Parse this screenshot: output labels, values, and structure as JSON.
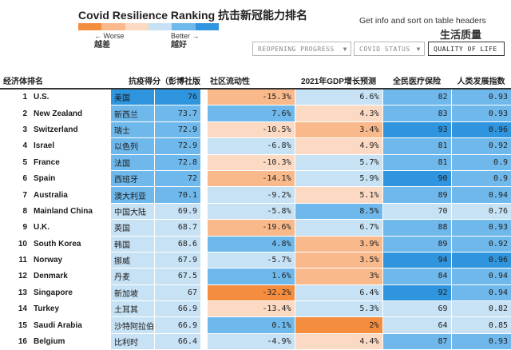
{
  "header": {
    "title": "Covid Resilience Ranking 抗击新冠能力排名",
    "legend": {
      "worse_label": "← Worse",
      "worse_cn": "越差",
      "better_label": "Better →",
      "better_cn": "越好",
      "colors": [
        "#f58d3f",
        "#f9b98b",
        "#fbd9c3",
        "#c6e2f4",
        "#6fb8ec",
        "#2f95de"
      ]
    },
    "info_text": "Get info and sort on table headers",
    "info_cn": "生活质量",
    "tabs": [
      {
        "label": "REOPENING PROGRESS",
        "caret": "▼"
      },
      {
        "label": "COVID STATUS",
        "caret": "▼"
      },
      {
        "label": "QUALITY OF LIFE",
        "caret": ""
      }
    ]
  },
  "chart_data": {
    "type": "table",
    "title": "Covid Resilience Ranking 抗击新冠能力排名",
    "columns": [
      "经济体排名",
      "抗疫得分（彭博社版）",
      "社区流动性",
      "2021年GDP增长预测",
      "全民医疗保险",
      "人类发展指数"
    ],
    "rows": [
      {
        "rank": "1",
        "country": "U.S.",
        "cn": "美国",
        "score": "76",
        "mobility": "-15.3%",
        "gdp": "6.6%",
        "health": "82",
        "hdi": "0.93"
      },
      {
        "rank": "2",
        "country": "New Zealand",
        "cn": "新西兰",
        "score": "73.7",
        "mobility": "7.6%",
        "gdp": "4.3%",
        "health": "83",
        "hdi": "0.93"
      },
      {
        "rank": "3",
        "country": "Switzerland",
        "cn": "瑞士",
        "score": "72.9",
        "mobility": "-10.5%",
        "gdp": "3.4%",
        "health": "93",
        "hdi": "0.96"
      },
      {
        "rank": "4",
        "country": "Israel",
        "cn": "以色列",
        "score": "72.9",
        "mobility": "-6.8%",
        "gdp": "4.9%",
        "health": "81",
        "hdi": "0.92"
      },
      {
        "rank": "5",
        "country": "France",
        "cn": "法国",
        "score": "72.8",
        "mobility": "-10.3%",
        "gdp": "5.7%",
        "health": "81",
        "hdi": "0.9"
      },
      {
        "rank": "6",
        "country": "Spain",
        "cn": "西班牙",
        "score": "72",
        "mobility": "-14.1%",
        "gdp": "5.9%",
        "health": "90",
        "hdi": "0.9"
      },
      {
        "rank": "7",
        "country": "Australia",
        "cn": "澳大利亚",
        "score": "70.1",
        "mobility": "-9.2%",
        "gdp": "5.1%",
        "health": "89",
        "hdi": "0.94"
      },
      {
        "rank": "8",
        "country": "Mainland China",
        "cn": "中国大陆",
        "score": "69.9",
        "mobility": "-5.8%",
        "gdp": "8.5%",
        "health": "70",
        "hdi": "0.76"
      },
      {
        "rank": "9",
        "country": "U.K.",
        "cn": "英国",
        "score": "68.7",
        "mobility": "-19.6%",
        "gdp": "6.7%",
        "health": "88",
        "hdi": "0.93"
      },
      {
        "rank": "10",
        "country": "South Korea",
        "cn": "韩国",
        "score": "68.6",
        "mobility": "4.8%",
        "gdp": "3.9%",
        "health": "89",
        "hdi": "0.92"
      },
      {
        "rank": "11",
        "country": "Norway",
        "cn": "挪威",
        "score": "67.9",
        "mobility": "-5.7%",
        "gdp": "3.5%",
        "health": "94",
        "hdi": "0.96"
      },
      {
        "rank": "12",
        "country": "Denmark",
        "cn": "丹麦",
        "score": "67.5",
        "mobility": "1.6%",
        "gdp": "3%",
        "health": "84",
        "hdi": "0.94"
      },
      {
        "rank": "13",
        "country": "Singapore",
        "cn": "新加坡",
        "score": "67",
        "mobility": "-32.2%",
        "gdp": "6.4%",
        "health": "92",
        "hdi": "0.94"
      },
      {
        "rank": "14",
        "country": "Turkey",
        "cn": "土耳其",
        "score": "66.9",
        "mobility": "-13.4%",
        "gdp": "5.3%",
        "health": "69",
        "hdi": "0.82"
      },
      {
        "rank": "15",
        "country": "Saudi Arabia",
        "cn": "沙特阿拉伯",
        "score": "66.9",
        "mobility": "0.1%",
        "gdp": "2%",
        "health": "64",
        "hdi": "0.85"
      },
      {
        "rank": "16",
        "country": "Belgium",
        "cn": "比利时",
        "score": "66.4",
        "mobility": "-4.9%",
        "gdp": "4.4%",
        "health": "87",
        "hdi": "0.93"
      }
    ],
    "cell_colors": {
      "score": [
        "#2f95de",
        "#6fb8ec",
        "#6fb8ec",
        "#6fb8ec",
        "#6fb8ec",
        "#6fb8ec",
        "#6fb8ec",
        "#c6e2f4",
        "#c6e2f4",
        "#c6e2f4",
        "#c6e2f4",
        "#c6e2f4",
        "#c6e2f4",
        "#c6e2f4",
        "#c6e2f4",
        "#c6e2f4"
      ],
      "mobility": [
        "#f9b98b",
        "#6fb8ec",
        "#fbd9c3",
        "#c6e2f4",
        "#fbd9c3",
        "#f9b98b",
        "#c6e2f4",
        "#c6e2f4",
        "#f9b98b",
        "#6fb8ec",
        "#c6e2f4",
        "#6fb8ec",
        "#f58d3f",
        "#fbd9c3",
        "#6fb8ec",
        "#c6e2f4"
      ],
      "gdp": [
        "#c6e2f4",
        "#fbd9c3",
        "#f9b98b",
        "#fbd9c3",
        "#c6e2f4",
        "#c6e2f4",
        "#fbd9c3",
        "#6fb8ec",
        "#c6e2f4",
        "#f9b98b",
        "#f9b98b",
        "#f9b98b",
        "#c6e2f4",
        "#c6e2f4",
        "#f58d3f",
        "#fbd9c3"
      ],
      "health": [
        "#6fb8ec",
        "#6fb8ec",
        "#2f95de",
        "#6fb8ec",
        "#6fb8ec",
        "#2f95de",
        "#6fb8ec",
        "#c6e2f4",
        "#6fb8ec",
        "#6fb8ec",
        "#2f95de",
        "#6fb8ec",
        "#2f95de",
        "#c6e2f4",
        "#c6e2f4",
        "#6fb8ec"
      ],
      "hdi": [
        "#6fb8ec",
        "#6fb8ec",
        "#2f95de",
        "#6fb8ec",
        "#6fb8ec",
        "#6fb8ec",
        "#6fb8ec",
        "#c6e2f4",
        "#6fb8ec",
        "#6fb8ec",
        "#2f95de",
        "#6fb8ec",
        "#6fb8ec",
        "#c6e2f4",
        "#c6e2f4",
        "#6fb8ec"
      ]
    }
  }
}
